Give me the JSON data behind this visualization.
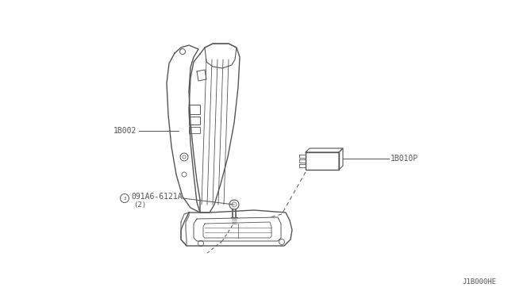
{
  "background_color": "#ffffff",
  "line_color": "#555555",
  "text_color": "#555555",
  "part_number_1": "1B002",
  "part_number_2": "1B010P",
  "part_number_3": "091A6-6121A",
  "part_number_3b": "(2)",
  "diagram_id": "J1B000HE",
  "fig_width": 6.4,
  "fig_height": 3.72,
  "dpi": 100
}
